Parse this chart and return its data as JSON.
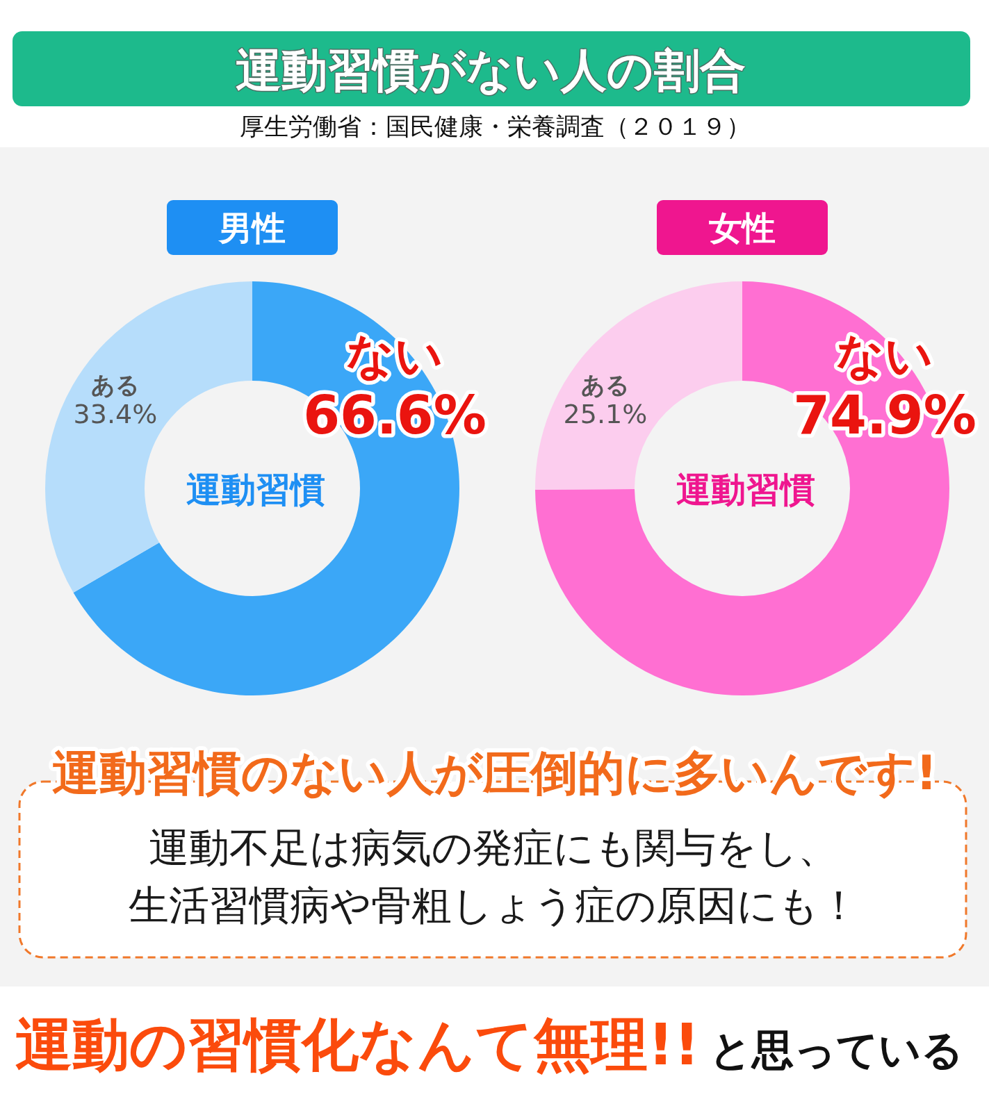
{
  "chart_data": [
    {
      "type": "other",
      "title": "運動習慣がない人の割合",
      "subtitle": "厚生労働省：国民健康・栄養調査（２０１９）"
    },
    {
      "type": "donut",
      "title": "男性",
      "categories": [
        "ない",
        "ある"
      ],
      "values": [
        66.6,
        33.4
      ],
      "colors": [
        "#3ba7f7",
        "#b6ddfb"
      ],
      "value_labels": [
        "66.6%",
        "33.4%"
      ],
      "annotations": [
        "運動習慣"
      ]
    },
    {
      "type": "donut",
      "title": "女性",
      "categories": [
        "ない",
        "ある"
      ],
      "values": [
        74.9,
        25.1
      ],
      "colors": [
        "#ff6fd2",
        "#fccdee"
      ],
      "value_labels": [
        "74.9%",
        "25.1%"
      ],
      "annotations": [
        "運動習慣"
      ]
    },
    {
      "type": "other",
      "title": "運動習慣のない人が圧倒的に多いんです!",
      "annotations": [
        "運動不足は病気の発症にも関与をし、",
        "生活習慣病や骨粗しょう症の原因にも！"
      ]
    },
    {
      "type": "other",
      "title": "運動の習慣化なんて無理!!",
      "subtitle": "と思っている"
    }
  ]
}
